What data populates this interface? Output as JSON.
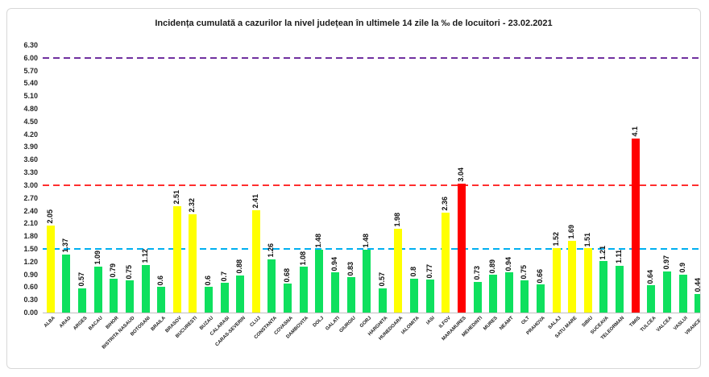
{
  "chart_data": {
    "type": "bar",
    "title": "Incidența cumulată a cazurilor la nivel județean în ultimele 14 zile   la ‰ de locuitori  - 23.02.2021",
    "xlabel": "",
    "ylabel": "",
    "ylim": [
      0,
      6.3
    ],
    "ytick_step": 0.3,
    "grid": false,
    "legend": "none",
    "yticks": [
      "0.00",
      "0.30",
      "0.60",
      "0.90",
      "1.20",
      "1.50",
      "1.80",
      "2.10",
      "2.40",
      "2.70",
      "3.00",
      "3.30",
      "3.60",
      "3.90",
      "4.20",
      "4.50",
      "4.80",
      "5.10",
      "5.40",
      "5.70",
      "6.00",
      "6.30"
    ],
    "reference_lines": [
      {
        "value": 6.0,
        "color": "#7030a0",
        "style": "dashed"
      },
      {
        "value": 3.0,
        "color": "#ff2e2e",
        "style": "dashed"
      },
      {
        "value": 1.5,
        "color": "#00b0f0",
        "style": "dashed"
      }
    ],
    "colors": {
      "green": "#0ee05e",
      "yellow": "#ffff00",
      "red": "#ff0000"
    },
    "categories": [
      "ALBA",
      "ARAD",
      "ARGES",
      "BACAU",
      "BIHOR",
      "BISTRITA NASAUD",
      "BOTOSANI",
      "BRAILA",
      "BRASOV",
      "BUCURESTI",
      "BUZAU",
      "CALARASI",
      "CARAS-SEVERIN",
      "CLUJ",
      "CONSTANTA",
      "COVASNA",
      "DAMBOVITA",
      "DOLJ",
      "GALATI",
      "GIURGIU",
      "GORJ",
      "HARGHITA",
      "HUNEDOARA",
      "IALOMITA",
      "IASI",
      "ILFOV",
      "MARAMURES",
      "MEHEDINTI",
      "MURES",
      "NEAMT",
      "OLT",
      "PRAHOVA",
      "SALAJ",
      "SATU MARE",
      "SIBIU",
      "SUCEAVA",
      "TELEORMAN",
      "TIMIS",
      "TULCEA",
      "VALCEA",
      "VASLUI",
      "VRANCEA"
    ],
    "bars": [
      {
        "county": "ALBA",
        "value": 2.05,
        "label": "2.05",
        "color": "yellow"
      },
      {
        "county": "ARAD",
        "value": 1.37,
        "label": "1.37",
        "color": "green"
      },
      {
        "county": "ARGES",
        "value": 0.57,
        "label": "0.57",
        "color": "green"
      },
      {
        "county": "BACAU",
        "value": 1.09,
        "label": "1.09",
        "color": "green"
      },
      {
        "county": "BIHOR",
        "value": 0.79,
        "label": "0.79",
        "color": "green"
      },
      {
        "county": "BISTRITA NASAUD",
        "value": 0.75,
        "label": "0.75",
        "color": "green"
      },
      {
        "county": "BOTOSANI",
        "value": 1.12,
        "label": "1.12",
        "color": "green"
      },
      {
        "county": "BRAILA",
        "value": 0.6,
        "label": "0.6",
        "color": "green"
      },
      {
        "county": "BRASOV",
        "value": 2.51,
        "label": "2.51",
        "color": "yellow"
      },
      {
        "county": "BUCURESTI",
        "value": 2.32,
        "label": "2.32",
        "color": "yellow"
      },
      {
        "county": "BUZAU",
        "value": 0.6,
        "label": "0.6",
        "color": "green"
      },
      {
        "county": "CALARASI",
        "value": 0.7,
        "label": "0.7",
        "color": "green"
      },
      {
        "county": "CARAS-SEVERIN",
        "value": 0.88,
        "label": "0.88",
        "color": "green"
      },
      {
        "county": "CLUJ",
        "value": 2.41,
        "label": "2.41",
        "color": "yellow"
      },
      {
        "county": "CONSTANTA",
        "value": 1.26,
        "label": "1.26",
        "color": "green"
      },
      {
        "county": "COVASNA",
        "value": 0.68,
        "label": "0.68",
        "color": "green"
      },
      {
        "county": "DAMBOVITA",
        "value": 1.08,
        "label": "1.08",
        "color": "green"
      },
      {
        "county": "DOLJ",
        "value": 1.48,
        "label": "1.48",
        "color": "green"
      },
      {
        "county": "GALATI",
        "value": 0.94,
        "label": "0.94",
        "color": "green"
      },
      {
        "county": "GIURGIU",
        "value": 0.83,
        "label": "0.83",
        "color": "green"
      },
      {
        "county": "GORJ",
        "value": 1.48,
        "label": "1.48",
        "color": "green"
      },
      {
        "county": "HARGHITA",
        "value": 0.57,
        "label": "0.57",
        "color": "green"
      },
      {
        "county": "HUNEDOARA",
        "value": 1.98,
        "label": "1.98",
        "color": "yellow"
      },
      {
        "county": "IALOMITA",
        "value": 0.8,
        "label": "0.8",
        "color": "green"
      },
      {
        "county": "IASI",
        "value": 0.77,
        "label": "0.77",
        "color": "green"
      },
      {
        "county": "ILFOV",
        "value": 2.36,
        "label": "2.36",
        "color": "yellow"
      },
      {
        "county": "MARAMURES",
        "value": 3.04,
        "label": "3.04",
        "color": "red"
      },
      {
        "county": "MEHEDINTI",
        "value": 0.73,
        "label": "0.73",
        "color": "green"
      },
      {
        "county": "MURES",
        "value": 0.89,
        "label": "0.89",
        "color": "green"
      },
      {
        "county": "NEAMT",
        "value": 0.94,
        "label": "0.94",
        "color": "green"
      },
      {
        "county": "OLT",
        "value": 0.75,
        "label": "0.75",
        "color": "green"
      },
      {
        "county": "PRAHOVA",
        "value": 0.66,
        "label": "0.66",
        "color": "green"
      },
      {
        "county": "SALAJ",
        "value": 1.52,
        "label": "1.52",
        "color": "yellow"
      },
      {
        "county": "SATU MARE",
        "value": 1.69,
        "label": "1.69",
        "color": "yellow"
      },
      {
        "county": "SIBIU",
        "value": 1.51,
        "label": "1.51",
        "color": "yellow"
      },
      {
        "county": "SUCEAVA",
        "value": 1.21,
        "label": "1.21",
        "color": "green"
      },
      {
        "county": "TELEORMAN",
        "value": 1.11,
        "label": "1.11",
        "color": "green"
      },
      {
        "county": "TIMIS",
        "value": 4.1,
        "label": "4.1",
        "color": "red"
      },
      {
        "county": "TULCEA",
        "value": 0.64,
        "label": "0.64",
        "color": "green"
      },
      {
        "county": "VALCEA",
        "value": 0.97,
        "label": "0.97",
        "color": "green"
      },
      {
        "county": "VASLUI",
        "value": 0.9,
        "label": "0.9",
        "color": "green"
      },
      {
        "county": "VRANCEA",
        "value": 0.44,
        "label": "0.44",
        "color": "green"
      }
    ]
  }
}
